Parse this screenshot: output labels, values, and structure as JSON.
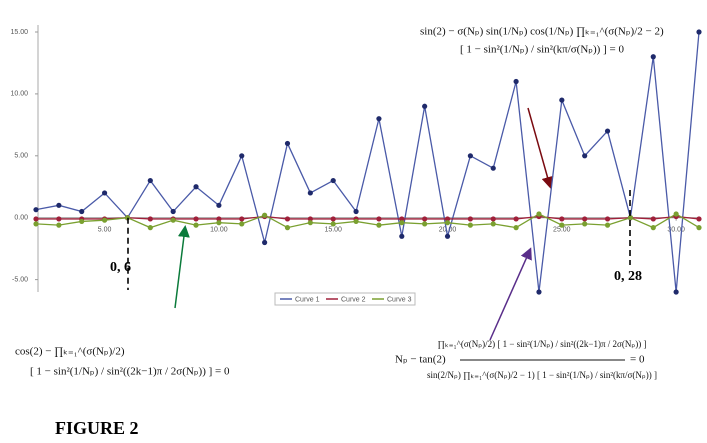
{
  "chart_data": {
    "type": "line",
    "x": [
      2,
      3,
      4,
      5,
      6,
      7,
      8,
      9,
      10,
      11,
      12,
      13,
      14,
      15,
      16,
      17,
      18,
      19,
      20,
      21,
      22,
      23,
      24,
      25,
      26,
      27,
      28,
      29,
      30,
      31
    ],
    "series": [
      {
        "name": "Curve 1",
        "color": "#4a5aa8",
        "values": [
          0.65,
          1.0,
          0.5,
          2.0,
          0,
          3.0,
          0.5,
          2.5,
          1.0,
          5.0,
          -2.0,
          6.0,
          2.0,
          3.0,
          0.5,
          8.0,
          -1.5,
          9.0,
          -1.5,
          5.0,
          4.0,
          11.0,
          -6.0,
          9.5,
          5.0,
          7.0,
          0,
          13.0,
          -6.0,
          15.0
        ]
      },
      {
        "name": "Curve 2",
        "color": "#a0203a",
        "values": [
          -0.1,
          -0.1,
          -0.1,
          -0.1,
          0,
          -0.1,
          -0.1,
          -0.1,
          -0.1,
          -0.1,
          0.1,
          -0.1,
          -0.1,
          -0.1,
          -0.1,
          -0.1,
          -0.1,
          -0.1,
          -0.1,
          -0.1,
          -0.1,
          -0.1,
          0.1,
          -0.1,
          -0.1,
          -0.1,
          0,
          -0.1,
          0.1,
          -0.1
        ]
      },
      {
        "name": "Curve 3",
        "color": "#7aa030",
        "values": [
          -0.5,
          -0.6,
          -0.3,
          -0.2,
          0,
          -0.8,
          -0.2,
          -0.6,
          -0.4,
          -0.5,
          0.2,
          -0.8,
          -0.4,
          -0.5,
          -0.3,
          -0.6,
          -0.4,
          -0.5,
          -0.4,
          -0.6,
          -0.5,
          -0.8,
          0.3,
          -0.6,
          -0.5,
          -0.6,
          0,
          -0.8,
          0.3,
          -0.8
        ]
      }
    ],
    "xlim": [
      2,
      31
    ],
    "ylim": [
      -6,
      15
    ],
    "xticks": [
      {
        "value": 5,
        "label": "5.00"
      },
      {
        "value": 10,
        "label": "10.00"
      },
      {
        "value": 15,
        "label": "15.00"
      },
      {
        "value": 20,
        "label": "20.00"
      },
      {
        "value": 25,
        "label": "25.00"
      },
      {
        "value": 30,
        "label": "30.00"
      }
    ],
    "yticks": [
      {
        "value": -5,
        "label": "-5.00"
      },
      {
        "value": 0,
        "label": "0.00"
      },
      {
        "value": 5,
        "label": "5.00"
      },
      {
        "value": 10,
        "label": "10.00"
      },
      {
        "value": 15,
        "label": "15.00"
      }
    ],
    "annotations": [
      {
        "lines": [
          "sin(2) − σ(Nₚ) sin(1/Nₚ) cos(1/Nₚ) ∏ₖ₌₁^(σ(Nₚ)/2 − 2)",
          "[ 1 − sin²(1/Nₚ) / sin²(kπ/σ(Nₚ)) ] = 0"
        ]
      },
      {
        "lines": [
          "cos(2) − ∏ₖ₌₁^(σ(Nₚ)/2)",
          "[ 1 − sin²(1/Nₚ) / sin²((2k−1)π / 2σ(Nₚ)) ] = 0"
        ]
      },
      {
        "lines": [
          "∏ₖ₌₁^(σ(Nₚ)/2) [ 1 − sin²(1/Nₚ) / sin²((2k−1)π / 2σ(Nₚ)) ]",
          "Nₚ − tan(2)",
          "= 0",
          "sin(2/Nₚ) ∏ₖ₌₁^(σ(Nₚ)/2 − 1) [ 1 − sin²(1/Nₚ) / sin²(kπ/σ(Nₚ)) ]"
        ]
      },
      {
        "lines": [
          "0, 6"
        ]
      },
      {
        "lines": [
          "0, 28"
        ]
      }
    ],
    "figure_label": "FIGURE 2"
  }
}
